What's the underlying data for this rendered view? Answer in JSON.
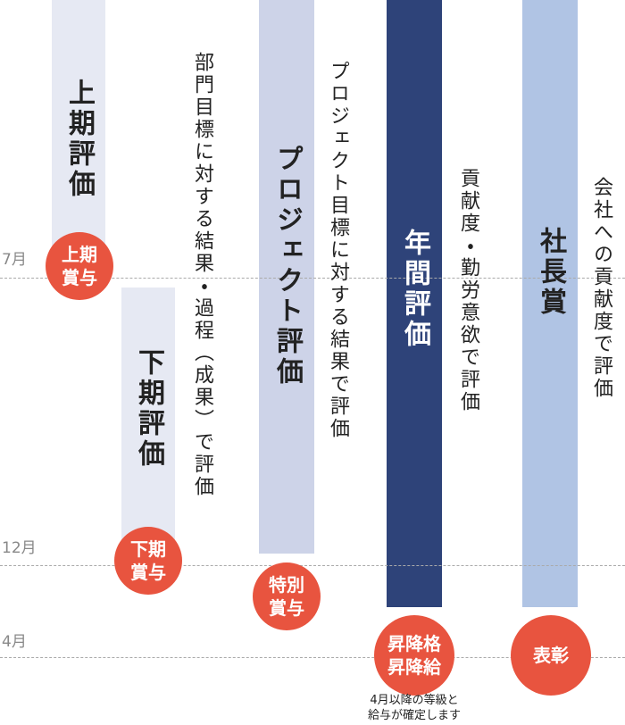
{
  "months": [
    "7月",
    "12月",
    "4月"
  ],
  "columns": [
    {
      "title": "上期評価",
      "award": [
        "上期",
        "賞与"
      ]
    },
    {
      "title": "下期評価",
      "award": [
        "下期",
        "賞与"
      ]
    },
    {
      "title": "プロジェクト評価",
      "award": [
        "特別",
        "賞与"
      ]
    },
    {
      "title": "年間評価",
      "award": [
        "昇降格",
        "昇降給"
      ]
    },
    {
      "title": "社長賞",
      "award": [
        "表彰"
      ]
    }
  ],
  "descriptions": [
    "部門目標に対する結果・過程（成果）で評価",
    "プロジェクト目標に対する結果で評価",
    "貢献度・勤労意欲で評価",
    "会社への貢献度で評価"
  ],
  "note": [
    "4月以降の等級と",
    "給与が確定します"
  ]
}
